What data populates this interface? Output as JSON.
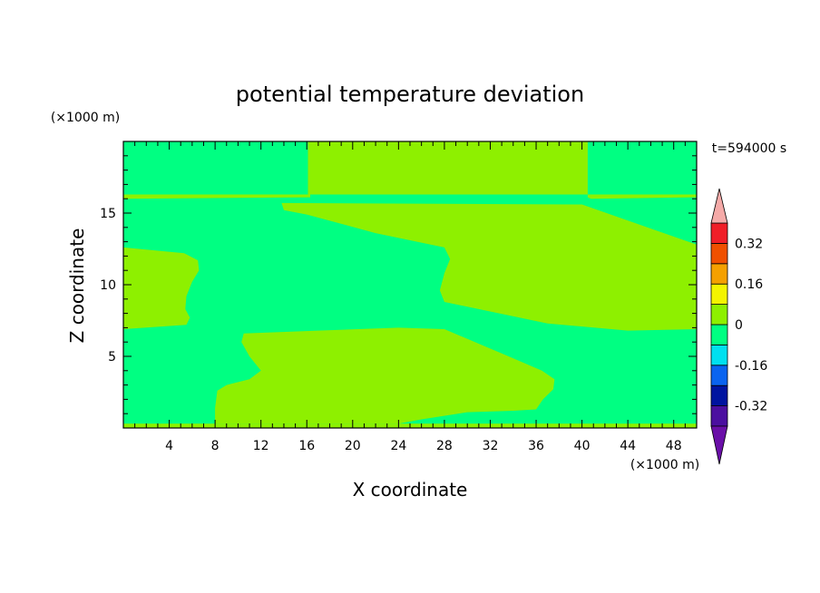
{
  "chart_data": {
    "type": "heatmap",
    "title": "potential temperature deviation",
    "xlabel": "X coordinate",
    "ylabel": "Z coordinate",
    "x_unit": "(×1000 m)",
    "y_unit": "(×1000 m)",
    "time_label": "t=594000 s",
    "xlim": [
      0,
      50
    ],
    "ylim": [
      0,
      20
    ],
    "x_ticks": [
      4,
      8,
      12,
      16,
      20,
      24,
      28,
      32,
      36,
      40,
      44,
      48
    ],
    "y_ticks": [
      5,
      10,
      15
    ],
    "colorbar": {
      "levels": [
        -0.4,
        -0.32,
        -0.24,
        -0.16,
        -0.08,
        0,
        0.08,
        0.16,
        0.24,
        0.32,
        0.4
      ],
      "tick_labels": [
        "0.32",
        "0.16",
        "0",
        "-0.16",
        "-0.32"
      ],
      "tick_values": [
        0.32,
        0.16,
        0,
        -0.16,
        -0.32
      ],
      "colors_low_to_high": [
        "#4b0fa0",
        "#0014a0",
        "#0a64f0",
        "#00e0f0",
        "#00ff82",
        "#8ef000",
        "#f4f400",
        "#f5a000",
        "#f05000",
        "#f01e28"
      ],
      "under_color": "#6a0fa8",
      "over_color": "#f5aaa8"
    },
    "field_colors": {
      "background": "#00ff82",
      "positive": "#8ef000"
    },
    "regions_positive_0_to_0.08": [
      {
        "name": "upper-center",
        "polygon": [
          [
            16.1,
            16.3
          ],
          [
            16.1,
            20
          ],
          [
            40.5,
            20
          ],
          [
            40.5,
            16.3
          ]
        ]
      },
      {
        "name": "upper-right",
        "polygon": [
          [
            40.5,
            16.1
          ],
          [
            40.8,
            16.0
          ],
          [
            50,
            16.1
          ],
          [
            50,
            16.3
          ],
          [
            40.5,
            16.3
          ]
        ]
      },
      {
        "name": "strip-16",
        "polygon": [
          [
            0,
            16.0
          ],
          [
            16.3,
            16.1
          ],
          [
            16.3,
            16.3
          ],
          [
            0,
            16.3
          ]
        ]
      },
      {
        "name": "mid-right",
        "polygon": [
          [
            13.8,
            15.7
          ],
          [
            40,
            15.6
          ],
          [
            50,
            12.8
          ],
          [
            50,
            6.9
          ],
          [
            44,
            6.8
          ],
          [
            37,
            7.3
          ],
          [
            28,
            8.8
          ],
          [
            27.6,
            9.6
          ],
          [
            28,
            10.8
          ],
          [
            28.5,
            11.8
          ],
          [
            28,
            12.6
          ],
          [
            22,
            13.6
          ],
          [
            16,
            14.9
          ],
          [
            14,
            15.2
          ]
        ]
      },
      {
        "name": "left",
        "polygon": [
          [
            0,
            12.6
          ],
          [
            5.3,
            12.2
          ],
          [
            6.5,
            11.7
          ],
          [
            6.6,
            11.0
          ],
          [
            6.0,
            10.2
          ],
          [
            5.5,
            9.2
          ],
          [
            5.4,
            8.3
          ],
          [
            5.8,
            7.7
          ],
          [
            5.5,
            7.2
          ],
          [
            0,
            6.9
          ]
        ]
      },
      {
        "name": "lower-center",
        "polygon": [
          [
            10.5,
            6.6
          ],
          [
            17,
            6.8
          ],
          [
            24,
            7.0
          ],
          [
            28,
            6.9
          ],
          [
            33,
            5.2
          ],
          [
            36.5,
            4.0
          ],
          [
            37.6,
            3.4
          ],
          [
            37.5,
            2.7
          ],
          [
            36.6,
            2.0
          ],
          [
            36,
            1.3
          ],
          [
            34,
            1.2
          ],
          [
            30,
            1.1
          ],
          [
            26,
            0.6
          ],
          [
            24,
            0.3
          ],
          [
            8,
            0.3
          ],
          [
            8.0,
            1.4
          ],
          [
            8.2,
            2.6
          ],
          [
            9,
            3.0
          ],
          [
            11,
            3.4
          ],
          [
            12,
            4.0
          ],
          [
            11,
            5.0
          ],
          [
            10.3,
            6.0
          ]
        ]
      },
      {
        "name": "bottom-strip",
        "polygon": [
          [
            0,
            0
          ],
          [
            50,
            0
          ],
          [
            50,
            0.3
          ],
          [
            0,
            0.3
          ]
        ]
      }
    ]
  }
}
